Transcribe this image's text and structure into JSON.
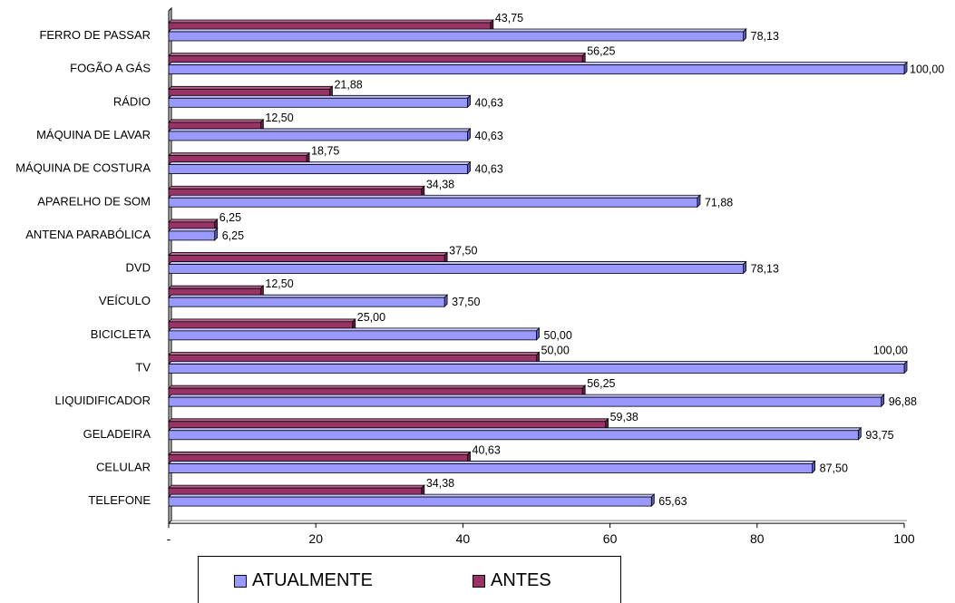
{
  "chart_data": {
    "type": "bar",
    "orientation": "horizontal",
    "categories": [
      "FERRO DE PASSAR",
      "FOGÃO A GÁS",
      "RÁDIO",
      "MÁQUINA DE LAVAR",
      "MÁQUINA DE COSTURA",
      "APARELHO DE SOM",
      "ANTENA PARABÓLICA",
      "DVD",
      "VEÍCULO",
      "BICICLETA",
      "TV",
      "LIQUIDIFICADOR",
      "GELADEIRA",
      "CELULAR",
      "TELEFONE"
    ],
    "series": [
      {
        "name": "ANTES",
        "color": "#993366",
        "values": [
          43.75,
          56.25,
          21.88,
          12.5,
          18.75,
          34.38,
          6.25,
          37.5,
          12.5,
          25.0,
          50.0,
          56.25,
          59.38,
          40.63,
          34.38
        ],
        "labels": [
          "43,75",
          "56,25",
          "21,88",
          "12,50",
          "18,75",
          "34,38",
          "6,25",
          "37,50",
          "12,50",
          "25,00",
          "50,00",
          "56,25",
          "59,38",
          "40,63",
          "34,38"
        ]
      },
      {
        "name": "ATUALMENTE",
        "color": "#9999ff",
        "values": [
          78.13,
          100.0,
          40.63,
          40.63,
          40.63,
          71.88,
          6.25,
          78.13,
          37.5,
          50.0,
          100.0,
          96.88,
          93.75,
          87.5,
          65.63
        ],
        "labels": [
          "78,13",
          "100,00",
          "40,63",
          "40,63",
          "40,63",
          "71,88",
          "6,25",
          "78,13",
          "37,50",
          "50,00",
          "100,00",
          "96,88",
          "93,75",
          "87,50",
          "65,63"
        ]
      }
    ],
    "xlim": [
      0,
      100
    ],
    "xticks": [
      0,
      20,
      40,
      60,
      80,
      100
    ],
    "xtick_labels": [
      "-",
      "20",
      "40",
      "60",
      "80",
      "100"
    ],
    "grid": false,
    "legend_position": "bottom",
    "legend_order": [
      "ATUALMENTE",
      "ANTES"
    ]
  }
}
